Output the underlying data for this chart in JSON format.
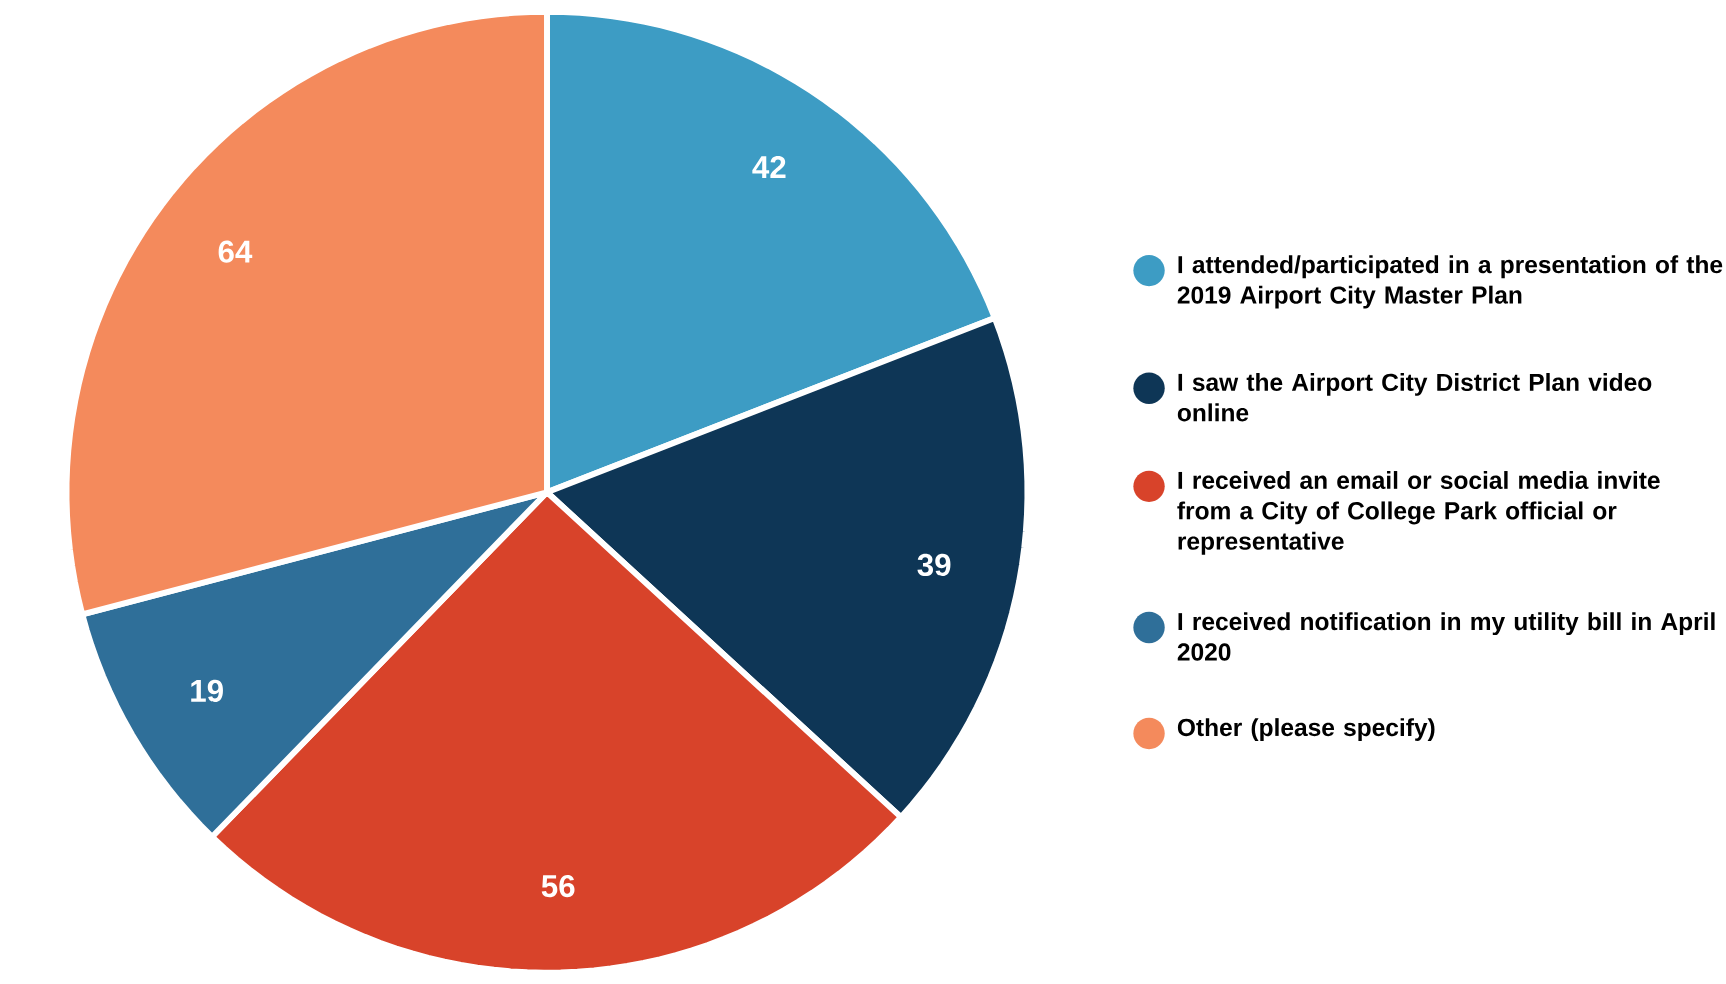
{
  "chart_data": {
    "type": "pie",
    "categories": [
      "I attended/participated in a presentation of the 2019 Airport City Master Plan",
      "I saw the Airport City District Plan video online",
      "I received an email or social media invite from a City of College Park official or representative",
      "I received notification in my utility bill in April 2020",
      "Other (please specify)"
    ],
    "values": [
      42,
      39,
      56,
      19,
      64
    ],
    "colors": [
      "#3d9cc4",
      "#0e3656",
      "#d8432a",
      "#2f6f99",
      "#f48a5c"
    ],
    "data_labels": true,
    "legend": "right"
  }
}
